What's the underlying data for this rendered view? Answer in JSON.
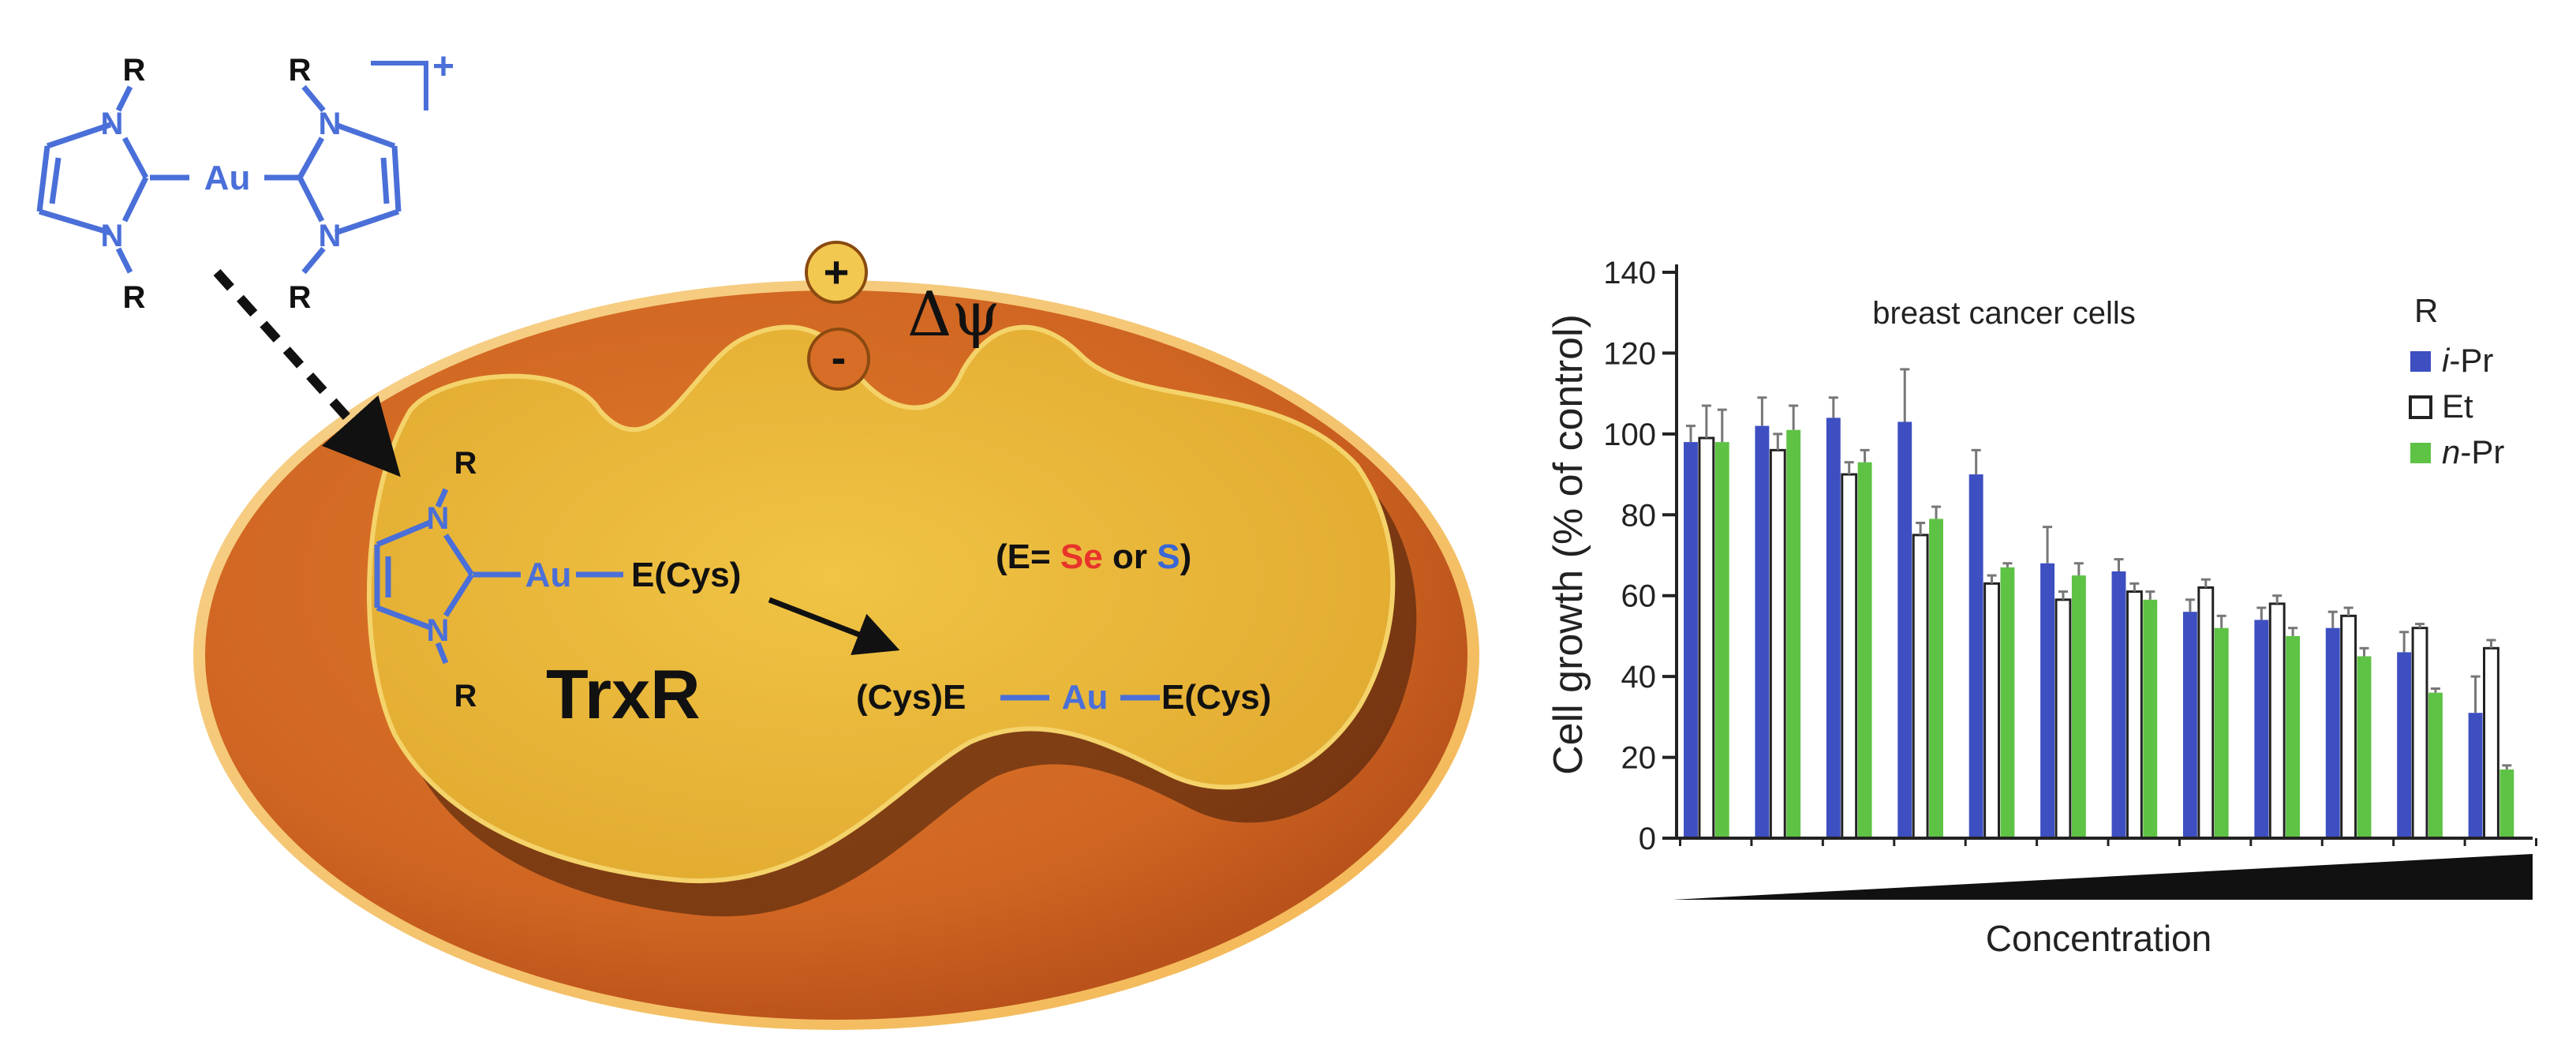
{
  "scheme": {
    "charge": "+",
    "r_label": "R",
    "n_label": "N",
    "au_label": "Au",
    "plus_sign": "+",
    "minus_sign": "-",
    "membrane_potential": "Δψ",
    "enzyme_label": "TrxR",
    "complex_au": "Au",
    "complex_right": "E(Cys)",
    "product_left": "(Cys)E",
    "product_au": "Au",
    "product_right": "E(Cys)",
    "element_note": {
      "open": "(E= ",
      "se": "Se",
      "or": " or ",
      "s": "S",
      "close": ")"
    },
    "colors": {
      "ligand_blue": "#4a6fd8",
      "outer_orange": "#cf6a22",
      "inner_yellow": "#e8b73a",
      "se_red": "#e8332b",
      "s_blue": "#3a66d6"
    }
  },
  "chart_data": {
    "type": "bar",
    "title": "breast cancer cells",
    "xlabel": "Concentration",
    "ylabel": "Cell growth (% of control)",
    "ylim": [
      0,
      140
    ],
    "yticks": [
      "0",
      "20",
      "40",
      "60",
      "80",
      "100",
      "120",
      "140"
    ],
    "legend_title": "R",
    "legend_position": "top-right",
    "group_count": 12,
    "series": [
      {
        "name": "i-Pr",
        "name_prefix": "i",
        "name_suffix": "-Pr",
        "color": "#3d4fc1",
        "fill": "solid",
        "values": [
          98,
          102,
          104,
          103,
          90,
          68,
          66,
          56,
          54,
          52,
          46,
          31
        ],
        "errors": [
          4,
          7,
          5,
          13,
          6,
          9,
          3,
          3,
          3,
          4,
          5,
          9
        ]
      },
      {
        "name": "Et",
        "name_prefix": "",
        "name_suffix": "Et",
        "color": "#ffffff",
        "fill": "open",
        "values": [
          99,
          96,
          90,
          75,
          63,
          59,
          61,
          62,
          58,
          55,
          52,
          47
        ],
        "errors": [
          8,
          4,
          3,
          3,
          2,
          2,
          2,
          2,
          2,
          2,
          1,
          2
        ]
      },
      {
        "name": "n-Pr",
        "name_prefix": "n",
        "name_suffix": "-Pr",
        "color": "#5ec245",
        "fill": "solid",
        "values": [
          98,
          101,
          93,
          79,
          67,
          65,
          59,
          52,
          50,
          45,
          36,
          17
        ],
        "errors": [
          8,
          6,
          3,
          3,
          1,
          3,
          2,
          3,
          2,
          2,
          1,
          1
        ]
      }
    ]
  }
}
